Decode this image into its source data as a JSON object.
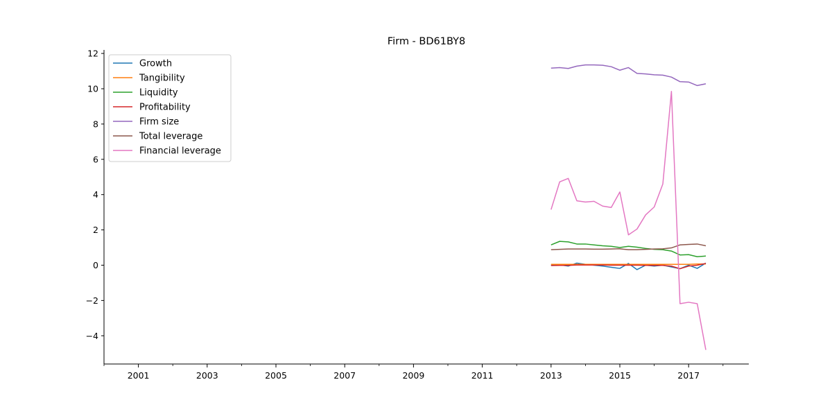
{
  "chart_data": {
    "type": "line",
    "title": "Firm - BD61BY8",
    "xlabel": "",
    "ylabel": "",
    "xlim": [
      2000.0,
      2018.75
    ],
    "ylim": [
      -5.6,
      12.2
    ],
    "x_ticks": [
      2001,
      2003,
      2005,
      2007,
      2009,
      2011,
      2013,
      2015,
      2017
    ],
    "x_tick_labels": [
      "2001",
      "2003",
      "2005",
      "2007",
      "2009",
      "2011",
      "2013",
      "2015",
      "2017"
    ],
    "x_minor_ticks": [
      2000,
      2002,
      2004,
      2006,
      2008,
      2010,
      2012,
      2014,
      2016,
      2018
    ],
    "y_ticks": [
      -4,
      -2,
      0,
      2,
      4,
      6,
      8,
      10,
      12
    ],
    "y_tick_labels": [
      "−4",
      "−2",
      "0",
      "2",
      "4",
      "6",
      "8",
      "10",
      "12"
    ],
    "grid": false,
    "legend_position": "top-left",
    "x": [
      2013.0,
      2013.25,
      2013.5,
      2013.75,
      2014.0,
      2014.25,
      2014.5,
      2014.75,
      2015.0,
      2015.25,
      2015.5,
      2015.75,
      2016.0,
      2016.25,
      2016.5,
      2016.75,
      2017.0,
      2017.25,
      2017.5
    ],
    "series": [
      {
        "name": "Growth",
        "color": "#1f77b4",
        "values": [
          0.0,
          0.02,
          -0.05,
          0.12,
          0.05,
          0.0,
          -0.05,
          -0.12,
          -0.18,
          0.1,
          -0.25,
          0.0,
          -0.05,
          0.0,
          -0.1,
          -0.2,
          0.0,
          -0.18,
          0.12
        ]
      },
      {
        "name": "Tangibility",
        "color": "#ff7f0e",
        "values": [
          0.05,
          0.05,
          0.05,
          0.05,
          0.05,
          0.05,
          0.05,
          0.05,
          0.05,
          0.05,
          0.05,
          0.05,
          0.05,
          0.05,
          0.05,
          0.05,
          0.05,
          0.07,
          0.07
        ]
      },
      {
        "name": "Liquidity",
        "color": "#2ca02c",
        "values": [
          1.15,
          1.35,
          1.32,
          1.2,
          1.2,
          1.15,
          1.1,
          1.07,
          1.0,
          1.07,
          1.02,
          0.95,
          0.9,
          0.88,
          0.8,
          0.58,
          0.6,
          0.48,
          0.52
        ]
      },
      {
        "name": "Profitability",
        "color": "#d62728",
        "values": [
          -0.02,
          -0.01,
          -0.01,
          0.01,
          0.01,
          0.01,
          0.01,
          0.0,
          0.0,
          0.0,
          0.0,
          -0.01,
          -0.01,
          -0.01,
          -0.05,
          -0.2,
          -0.05,
          0.0,
          0.1
        ]
      },
      {
        "name": "Firm size",
        "color": "#9467bd",
        "values": [
          11.17,
          11.2,
          11.15,
          11.28,
          11.35,
          11.35,
          11.33,
          11.25,
          11.05,
          11.2,
          10.87,
          10.84,
          10.79,
          10.77,
          10.66,
          10.4,
          10.38,
          10.18,
          10.28
        ]
      },
      {
        "name": "Total leverage",
        "color": "#8c564b",
        "values": [
          0.88,
          0.9,
          0.92,
          0.92,
          0.92,
          0.91,
          0.91,
          0.92,
          0.93,
          0.88,
          0.88,
          0.9,
          0.92,
          0.93,
          0.98,
          1.15,
          1.18,
          1.2,
          1.1
        ]
      },
      {
        "name": "Financial leverage",
        "color": "#e377c2",
        "values": [
          3.15,
          4.72,
          4.92,
          3.65,
          3.58,
          3.62,
          3.35,
          3.27,
          4.15,
          1.72,
          2.05,
          2.85,
          3.3,
          4.6,
          9.85,
          -2.18,
          -2.1,
          -2.18,
          -4.8
        ]
      }
    ]
  }
}
